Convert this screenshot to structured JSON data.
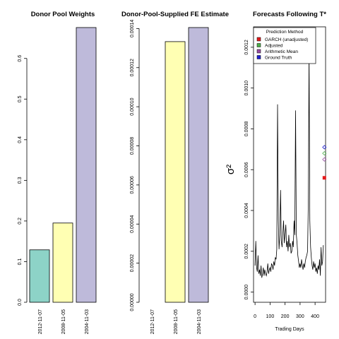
{
  "colors": {
    "teal": "#8dd3c7",
    "yellow": "#ffffb3",
    "lavender": "#bebada",
    "red": "#e41a1c",
    "green": "#4daf4a",
    "purple": "#984ea3",
    "blue": "#1f1fd0"
  },
  "chart_data": [
    {
      "type": "bar",
      "title": "Donor Pool Weights",
      "categories": [
        "2012-11-07",
        "2008-11-05",
        "2004-11-03"
      ],
      "values": [
        0.129,
        0.195,
        0.676
      ],
      "colors": [
        "teal",
        "yellow",
        "lavender"
      ],
      "ylim": [
        0,
        0.676
      ],
      "yticks": [
        0.0,
        0.1,
        0.2,
        0.3,
        0.4,
        0.5,
        0.6
      ],
      "ytick_labels": [
        "0.0",
        "0.1",
        "0.2",
        "0.3",
        "0.4",
        "0.5",
        "0.6"
      ]
    },
    {
      "type": "bar",
      "title": "Donor-Pool-Supplied FE Estimate",
      "categories": [
        "2012-11-07",
        "2008-11-05",
        "2004-11-03"
      ],
      "values": [
        0.0,
        0.0001333,
        0.0001405
      ],
      "colors": [
        "teal",
        "yellow",
        "lavender"
      ],
      "ylim": [
        0,
        0.0001405
      ],
      "yticks": [
        0,
        2e-05,
        4e-05,
        6e-05,
        8e-05,
        0.0001,
        0.00012,
        0.00014
      ],
      "ytick_labels": [
        "0.00000",
        "0.00002",
        "0.00004",
        "0.00006",
        "0.00008",
        "0.00010",
        "0.00012",
        "0.00014"
      ]
    },
    {
      "type": "line",
      "title": "Forecasts Following T*",
      "xlabel": "Trading Days",
      "ylabel": "σ²",
      "xlim": [
        -10,
        470
      ],
      "ylim": [
        -5e-05,
        0.0013
      ],
      "xticks": [
        0,
        100,
        200,
        300,
        400
      ],
      "yticks": [
        0.0,
        0.0002,
        0.0004,
        0.0006,
        0.0008,
        0.001,
        0.0012
      ],
      "ytick_labels": [
        "0.0000",
        "0.0002",
        "0.0004",
        "0.0006",
        "0.0008",
        "0.0010",
        "0.0012"
      ],
      "legend": {
        "title": "Prediction Method",
        "position": "top-right",
        "entries": [
          {
            "label": "GARCH (unadjusted)",
            "color": "red"
          },
          {
            "label": "Adjusted",
            "color": "green"
          },
          {
            "label": "Arithmetic Mean",
            "color": "purple"
          },
          {
            "label": "Ground Truth",
            "color": "blue"
          }
        ]
      },
      "series": [
        {
          "x": [
            0,
            5,
            10,
            15,
            20,
            25,
            30,
            35,
            40,
            45,
            50,
            55,
            60,
            65,
            70,
            75,
            80,
            85,
            90,
            95,
            100,
            105,
            110,
            115,
            120,
            125,
            130,
            135,
            140,
            145,
            150,
            155,
            160,
            165,
            170,
            175,
            180,
            185,
            190,
            195,
            200,
            205,
            210,
            215,
            220,
            225,
            230,
            235,
            240,
            245,
            250,
            255,
            260,
            265,
            270,
            275,
            280,
            285,
            290,
            295,
            300,
            305,
            310,
            315,
            320,
            325,
            330,
            335,
            340,
            345,
            350,
            355,
            360,
            365,
            370,
            375,
            380,
            385,
            390,
            395,
            400,
            405,
            410,
            415,
            420,
            425,
            430,
            435,
            440,
            445,
            450,
            455
          ],
          "y": [
            0.00013,
            0.00025,
            0.00012,
            0.0001,
            0.00018,
            9e-05,
            0.00011,
            8e-05,
            0.00013,
            7e-05,
            9e-05,
            0.00012,
            8e-05,
            0.00011,
            9e-05,
            8e-05,
            0.0001,
            0.00014,
            9e-05,
            0.00011,
            0.00012,
            0.0001,
            0.00014,
            0.00013,
            0.00011,
            0.00015,
            0.00013,
            0.00017,
            0.00016,
            0.00021,
            0.00092,
            0.00035,
            0.00021,
            0.00028,
            0.0005,
            0.00025,
            0.00022,
            0.00028,
            0.00035,
            0.00024,
            0.00028,
            0.00033,
            0.00022,
            0.00025,
            0.0002,
            0.00028,
            0.00022,
            0.00024,
            0.00019,
            0.0002,
            0.00025,
            0.00022,
            0.00035,
            0.00028,
            0.00089,
            0.00028,
            0.00024,
            0.00018,
            0.00015,
            0.00012,
            0.00014,
            0.00012,
            0.00016,
            0.00013,
            0.00011,
            0.00014,
            0.00012,
            0.00015,
            0.00017,
            0.00018,
            0.0002,
            0.00045,
            0.00118,
            0.00035,
            0.00022,
            0.00017,
            0.00013,
            0.00011,
            0.00015,
            0.00012,
            0.00014,
            0.0001,
            0.00012,
            9e-05,
            0.00013,
            0.00011,
            0.00016,
            8e-05,
            0.00022,
            0.00013,
            0.00015,
            0.00023
          ]
        }
      ],
      "points": [
        {
          "method": "GARCH (unadjusted)",
          "x": 462,
          "y": 0.00056,
          "color": "red",
          "shape": "square"
        },
        {
          "method": "Adjusted",
          "x": 462,
          "y": 0.00068,
          "color": "green",
          "shape": "diamond"
        },
        {
          "method": "Arithmetic Mean",
          "x": 462,
          "y": 0.00065,
          "color": "purple",
          "shape": "diamond"
        },
        {
          "method": "Ground Truth",
          "x": 462,
          "y": 0.00071,
          "color": "blue",
          "shape": "diamond"
        }
      ]
    }
  ]
}
